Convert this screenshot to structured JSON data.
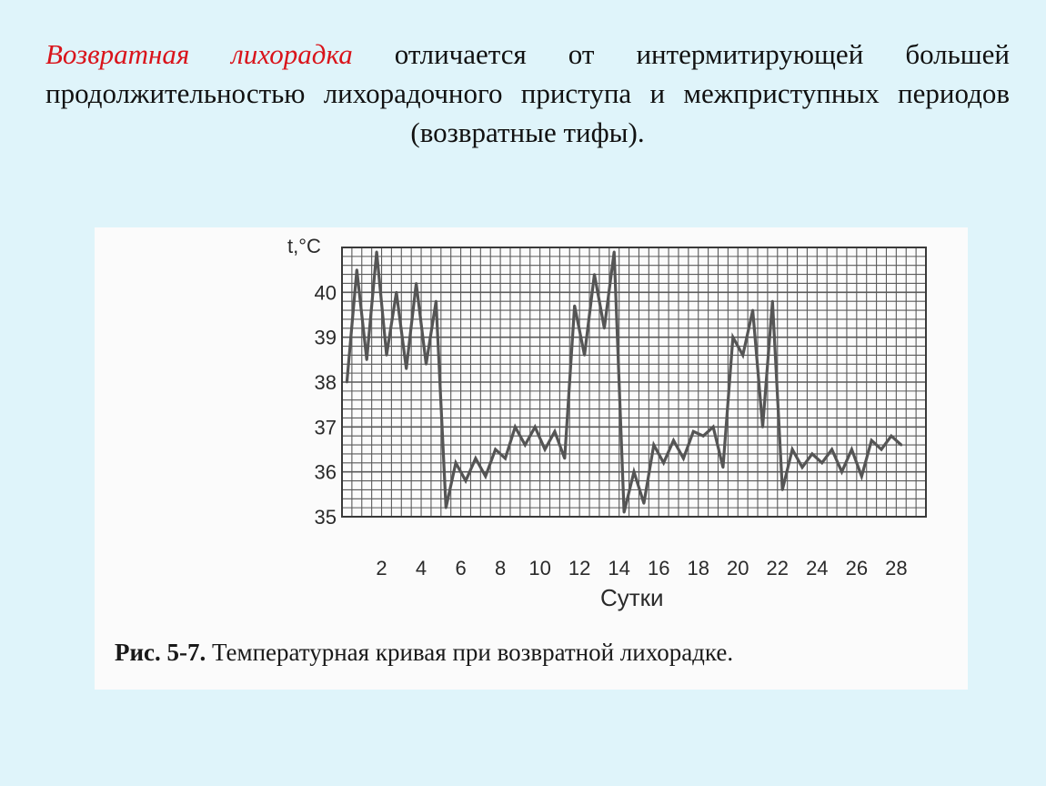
{
  "slide": {
    "heading_accent": "Возвратная лихорадка",
    "heading_rest": " отличается от интермитирующей большей продолжительностью лихорадочного приступа и межприступных периодов (возвратные тифы).",
    "accent_color": "#d9141b",
    "background_color": "#dff4fa"
  },
  "figure": {
    "caption_label": "Рис. 5-7.",
    "caption_text": " Температурная кривая при возвратной лихорадке."
  },
  "chart_data": {
    "type": "line",
    "ylabel": "t,°C",
    "xlabel": "Сутки",
    "ylim": [
      35,
      41
    ],
    "xlim": [
      0,
      29.5
    ],
    "y_ticks": [
      35,
      36,
      37,
      38,
      39,
      40
    ],
    "x_ticks": [
      2,
      4,
      6,
      8,
      10,
      12,
      14,
      16,
      18,
      20,
      22,
      24,
      26,
      28
    ],
    "grid": true,
    "line_color": "#555555",
    "x": [
      0.25,
      0.75,
      1.25,
      1.75,
      2.25,
      2.75,
      3.25,
      3.75,
      4.25,
      4.75,
      5.25,
      5.75,
      6.25,
      6.75,
      7.25,
      7.75,
      8.25,
      8.75,
      9.25,
      9.75,
      10.25,
      10.75,
      11.25,
      11.75,
      12.25,
      12.75,
      13.25,
      13.75,
      14.25,
      14.75,
      15.25,
      15.75,
      16.25,
      16.75,
      17.25,
      17.75,
      18.25,
      18.75,
      19.25,
      19.75,
      20.25,
      20.75,
      21.25,
      21.75,
      22.25,
      22.75,
      23.25,
      23.75,
      24.25,
      24.75,
      25.25,
      25.75,
      26.25,
      26.75,
      27.25,
      27.75,
      28.25
    ],
    "values": [
      38.0,
      40.5,
      38.5,
      40.9,
      38.6,
      40.0,
      38.3,
      40.2,
      38.4,
      39.8,
      35.2,
      36.2,
      35.8,
      36.3,
      35.9,
      36.5,
      36.3,
      37.0,
      36.6,
      37.0,
      36.5,
      36.9,
      36.3,
      39.7,
      38.6,
      40.4,
      39.2,
      40.9,
      35.1,
      36.0,
      35.3,
      36.6,
      36.2,
      36.7,
      36.3,
      36.9,
      36.8,
      37.0,
      36.1,
      39.0,
      38.6,
      39.6,
      37.0,
      39.8,
      35.6,
      36.5,
      36.1,
      36.4,
      36.2,
      36.5,
      36.0,
      36.5,
      35.9,
      36.7,
      36.5,
      36.8,
      36.6
    ]
  }
}
